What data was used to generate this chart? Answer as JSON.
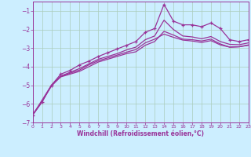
{
  "title": "",
  "xlabel": "Windchill (Refroidissement éolien,°C)",
  "background_color": "#cceeff",
  "grid_color": "#aaccbb",
  "line_color": "#993399",
  "xlim": [
    0,
    23
  ],
  "ylim": [
    -7,
    -0.5
  ],
  "yticks": [
    -7,
    -6,
    -5,
    -4,
    -3,
    -2,
    -1
  ],
  "xticks": [
    0,
    1,
    2,
    3,
    4,
    5,
    6,
    7,
    8,
    9,
    10,
    11,
    12,
    13,
    14,
    15,
    16,
    17,
    18,
    19,
    20,
    21,
    22,
    23
  ],
  "curve1_x": [
    0,
    1,
    2,
    3,
    4,
    5,
    6,
    7,
    8,
    9,
    10,
    11,
    12,
    13,
    14,
    15,
    16,
    17,
    18,
    19,
    20,
    21,
    22,
    23
  ],
  "curve1_y": [
    -6.6,
    -5.9,
    -5.0,
    -4.4,
    -4.2,
    -3.9,
    -3.7,
    -3.45,
    -3.25,
    -3.05,
    -2.85,
    -2.65,
    -2.15,
    -1.95,
    -0.65,
    -1.55,
    -1.75,
    -1.75,
    -1.85,
    -1.65,
    -1.95,
    -2.55,
    -2.65,
    -2.55
  ],
  "curve2_x": [
    0,
    1,
    2,
    3,
    4,
    5,
    6,
    7,
    8,
    9,
    10,
    11,
    12,
    13,
    14,
    15,
    16,
    17,
    18,
    19,
    20,
    21,
    22,
    23
  ],
  "curve2_y": [
    -6.6,
    -5.9,
    -5.0,
    -4.5,
    -4.3,
    -4.1,
    -3.85,
    -3.6,
    -3.45,
    -3.3,
    -3.1,
    -2.95,
    -2.55,
    -2.35,
    -1.5,
    -2.0,
    -2.35,
    -2.4,
    -2.5,
    -2.38,
    -2.65,
    -2.8,
    -2.82,
    -2.72
  ],
  "curve3_x": [
    0,
    1,
    2,
    3,
    4,
    5,
    6,
    7,
    8,
    9,
    10,
    11,
    12,
    13,
    14,
    15,
    16,
    17,
    18,
    19,
    20,
    21,
    22,
    23
  ],
  "curve3_y": [
    -6.6,
    -5.8,
    -5.0,
    -4.55,
    -4.4,
    -4.25,
    -4.0,
    -3.75,
    -3.6,
    -3.45,
    -3.3,
    -3.2,
    -2.85,
    -2.65,
    -2.1,
    -2.3,
    -2.52,
    -2.55,
    -2.62,
    -2.52,
    -2.78,
    -2.95,
    -2.93,
    -2.83
  ],
  "smooth_x": [
    0,
    1,
    2,
    3,
    4,
    5,
    6,
    7,
    8,
    9,
    10,
    11,
    12,
    13,
    14,
    15,
    16,
    17,
    18,
    19,
    20,
    21,
    22,
    23
  ],
  "smooth_y": [
    -6.6,
    -5.85,
    -5.05,
    -4.52,
    -4.35,
    -4.18,
    -3.9,
    -3.68,
    -3.53,
    -3.38,
    -3.22,
    -3.08,
    -2.72,
    -2.52,
    -2.25,
    -2.42,
    -2.57,
    -2.62,
    -2.7,
    -2.6,
    -2.83,
    -2.95,
    -2.93,
    -2.85
  ]
}
